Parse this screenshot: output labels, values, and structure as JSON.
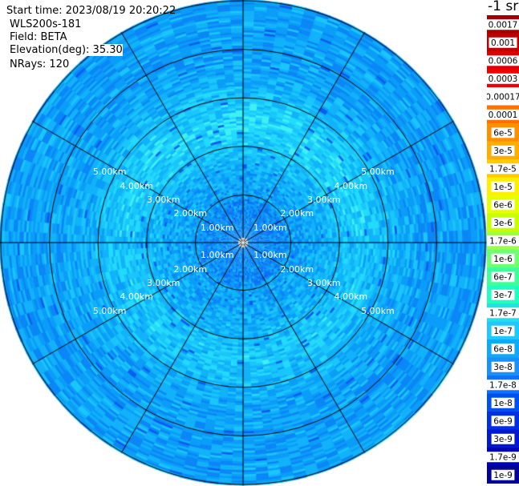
{
  "header": {
    "start_time": "Start time: 2023/08/19 20:20:22",
    "instrument": "WLS200s-181",
    "field": "Field: BETA",
    "elevation": "Elevation(deg): 35.30",
    "nrays": "NRays: 120",
    "unit": "-1 sr"
  },
  "chart_data": {
    "type": "heatmap",
    "title": "",
    "projection": "polar PPI",
    "max_range_km": 5.0,
    "range_rings": [
      {
        "range_km": 1.0,
        "label": "1.00km"
      },
      {
        "range_km": 2.0,
        "label": "2.00km"
      },
      {
        "range_km": 3.0,
        "label": "3.00km"
      },
      {
        "range_km": 4.0,
        "label": "4.00km"
      },
      {
        "range_km": 5.0,
        "label": "5.00km"
      }
    ],
    "spoke_angles_deg": [
      0,
      30,
      60,
      90,
      120,
      150,
      180,
      210,
      240,
      270,
      300,
      330
    ],
    "n_rays": 120,
    "field_description": "backscatter values mostly in 1e-8 to 1e-7 range; higher values (3e-7 to 1.7e-7) in a ring around 2-3 km",
    "colorbar": {
      "labels": [
        "0.0017",
        "0.001",
        "0.0006",
        "0.0003",
        "0.00017",
        "0.0001",
        "6e-5",
        "3e-5",
        "1.7e-5",
        "1e-5",
        "6e-6",
        "3e-6",
        "1.7e-6",
        "1e-6",
        "6e-7",
        "3e-7",
        "1.7e-7",
        "1e-7",
        "6e-8",
        "3e-8",
        "1.7e-8",
        "1e-8",
        "6e-9",
        "3e-9",
        "1.7e-9",
        "1e-9"
      ],
      "colors": [
        "#a40000",
        "#c00000",
        "#dd0000",
        "#f00000",
        "#ffffff",
        "#ff7000",
        "#ff8f00",
        "#ffae00",
        "#ffcc00",
        "#ffee00",
        "#e6ff00",
        "#c8ff00",
        "#a0ff40",
        "#70ff70",
        "#40ff98",
        "#20ffc0",
        "#20e0e8",
        "#20c8ff",
        "#10a8f8",
        "#1890ff",
        "#1070ff",
        "#0050f0",
        "#0030e0",
        "#0018d0",
        "#0000b8",
        "#000098"
      ]
    }
  }
}
